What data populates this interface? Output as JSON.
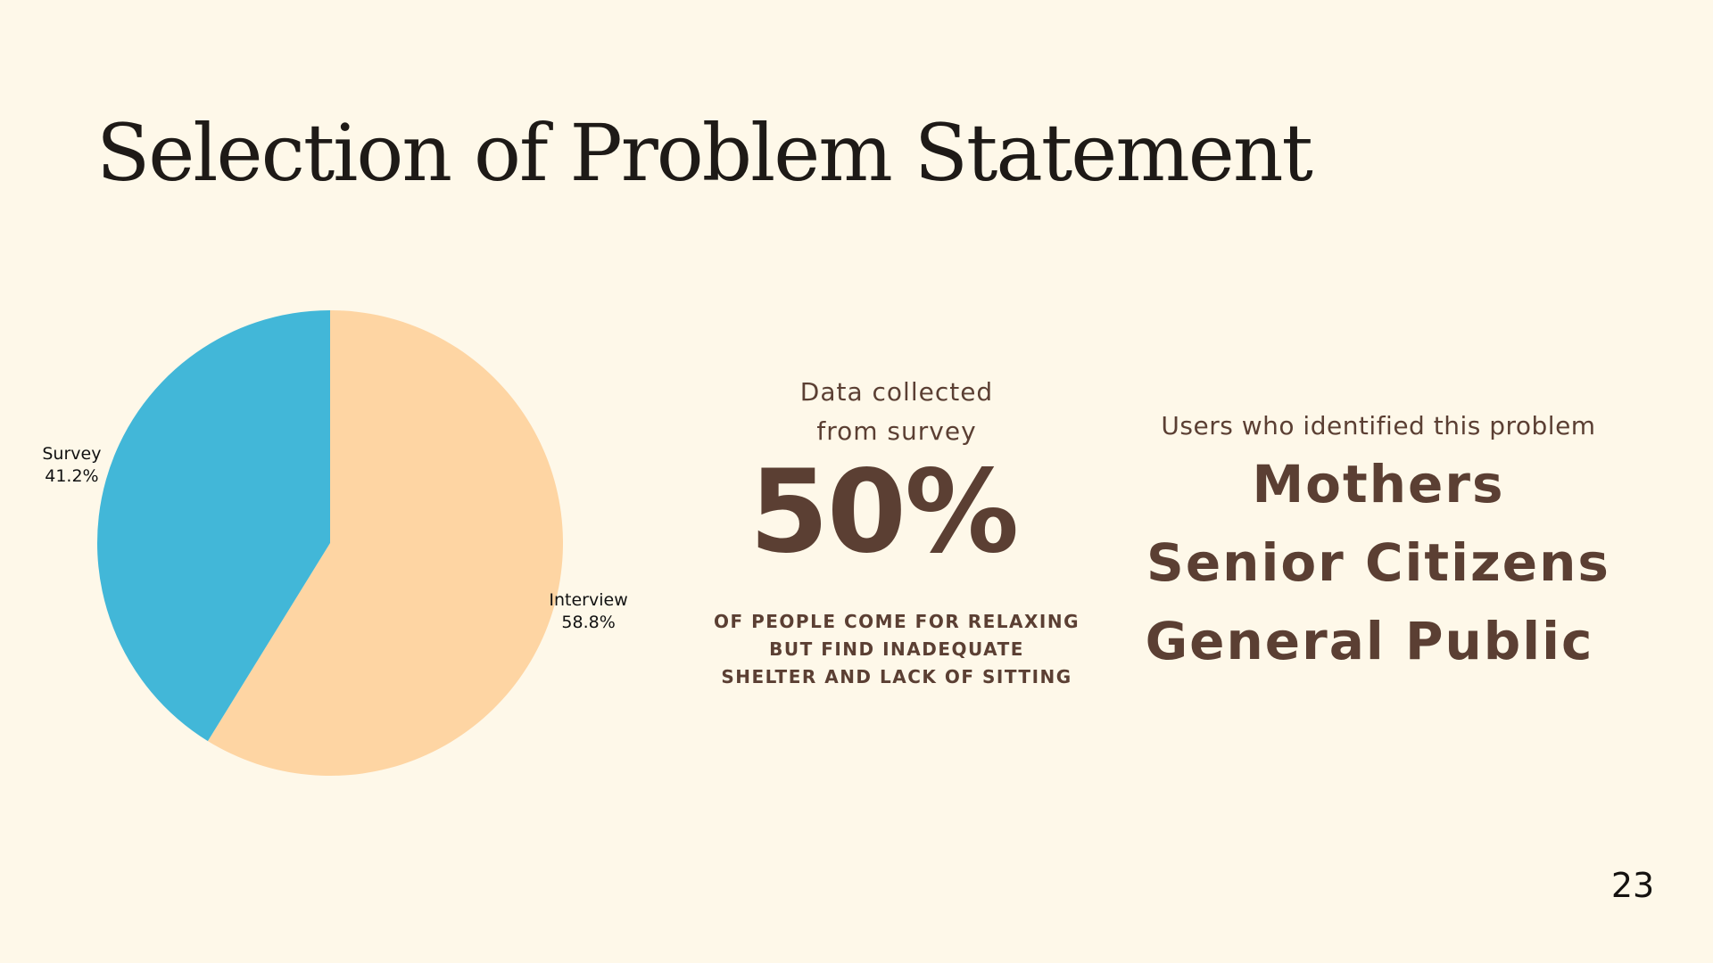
{
  "slide": {
    "title": "Selection of Problem Statement",
    "page_number": "23"
  },
  "stat": {
    "caption_line1": "Data collected",
    "caption_line2": "from survey",
    "value": "50%",
    "desc_line1": "OF PEOPLE COME FOR RELAXING",
    "desc_line2": "BUT FIND INADEQUATE",
    "desc_line3": "SHELTER AND LACK OF SITTING"
  },
  "users": {
    "heading": "Users who identified this problem",
    "groups": [
      "Mothers",
      "Senior Citizens",
      "General Public"
    ]
  },
  "colors": {
    "background": "#FEF8E9",
    "survey": "#42B7D8",
    "interview": "#FED5A3",
    "text_brown": "#5B3F33",
    "title": "#1E1A17"
  },
  "chart_data": {
    "type": "pie",
    "title": "",
    "start": "top, clockwise",
    "slices": [
      {
        "label": "Interview",
        "percent_label": "58.8%",
        "value": 58.8,
        "color": "#FED5A3"
      },
      {
        "label": "Survey",
        "percent_label": "41.2%",
        "value": 41.2,
        "color": "#42B7D8"
      }
    ]
  }
}
